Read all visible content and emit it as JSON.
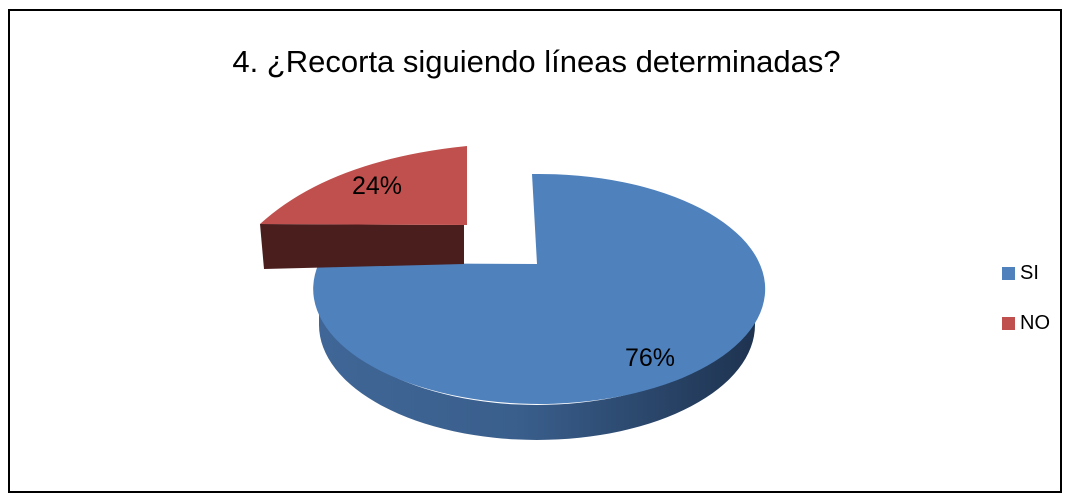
{
  "chart_data": {
    "type": "pie",
    "title": "4. ¿Recorta siguiendo líneas determinadas?",
    "categories": [
      "SI",
      "NO"
    ],
    "values": [
      76,
      24
    ],
    "data_labels": [
      "76%",
      "24%"
    ],
    "colors": [
      "#4f81bd",
      "#c0504d"
    ],
    "legend_position": "right",
    "exploded": [
      "NO"
    ],
    "style": "3d"
  }
}
